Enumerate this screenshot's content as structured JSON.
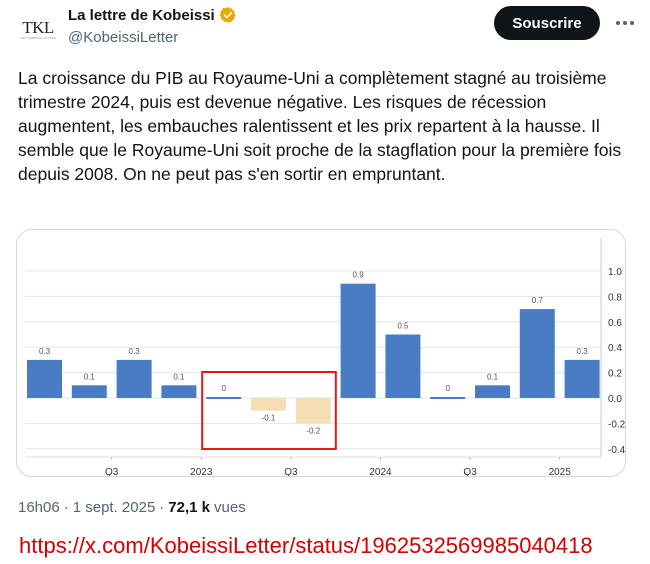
{
  "account": {
    "avatar_text": "TKL",
    "avatar_subtext": "THE KOBEISSI LETTER",
    "name": "La lettre de Kobeissi",
    "handle": "@KobeissiLetter"
  },
  "actions": {
    "subscribe_label": "Souscrire"
  },
  "tweet": {
    "text": "La croissance du PIB au Royaume-Uni a complètement stagné au troisième trimestre 2024, puis est devenue négative. Les risques de récession augmentent, les embauches ralentissent et les prix repartent à la hausse. Il semble que le Royaume-Uni soit proche de la stagflation pour la première fois depuis 2008. On ne peut pas s'en sortir en empruntant."
  },
  "meta": {
    "time": "16h06",
    "sep": "·",
    "date": "1 sept. 2025",
    "views_count": "72,1 k",
    "views_label": "vues"
  },
  "source_url": "https://x.com/KobeissiLetter/status/1962532569985040418",
  "colors": {
    "positive_bar": "#4a7cc4",
    "negative_bar": "#f5deb3",
    "highlight_box": "#e0191b",
    "verified_badge": "#e8a800"
  },
  "chart_data": {
    "type": "bar",
    "values": [
      0.3,
      0.1,
      0.3,
      0.1,
      0,
      -0.1,
      -0.2,
      0.9,
      0.5,
      0,
      0.1,
      0.7,
      0.3
    ],
    "value_labels": [
      "0.3",
      "0.1",
      "0.3",
      "0.1",
      "0",
      "-0.1",
      "-0.2",
      "0.9",
      "0.5",
      "0",
      "0.1",
      "0.7",
      "0.3"
    ],
    "x_tick_labels": [
      {
        "label": "Q3",
        "at_bar": 1.5
      },
      {
        "label": "2023",
        "at_bar": 3.5
      },
      {
        "label": "Q3",
        "at_bar": 5.5
      },
      {
        "label": "2024",
        "at_bar": 7.5
      },
      {
        "label": "Q3",
        "at_bar": 9.5
      },
      {
        "label": "2025",
        "at_bar": 11.5
      }
    ],
    "y_ticks": [
      "1.0",
      "0.8",
      "0.6",
      "0.4",
      "0.2",
      "0.0",
      "-0.2",
      "-0.4"
    ],
    "y_tick_values": [
      1.0,
      0.8,
      0.6,
      0.4,
      0.2,
      0.0,
      -0.2,
      -0.4
    ],
    "ylim": [
      -0.4,
      1.0
    ],
    "highlighted_bars": [
      4,
      5,
      6
    ],
    "grid": true
  }
}
